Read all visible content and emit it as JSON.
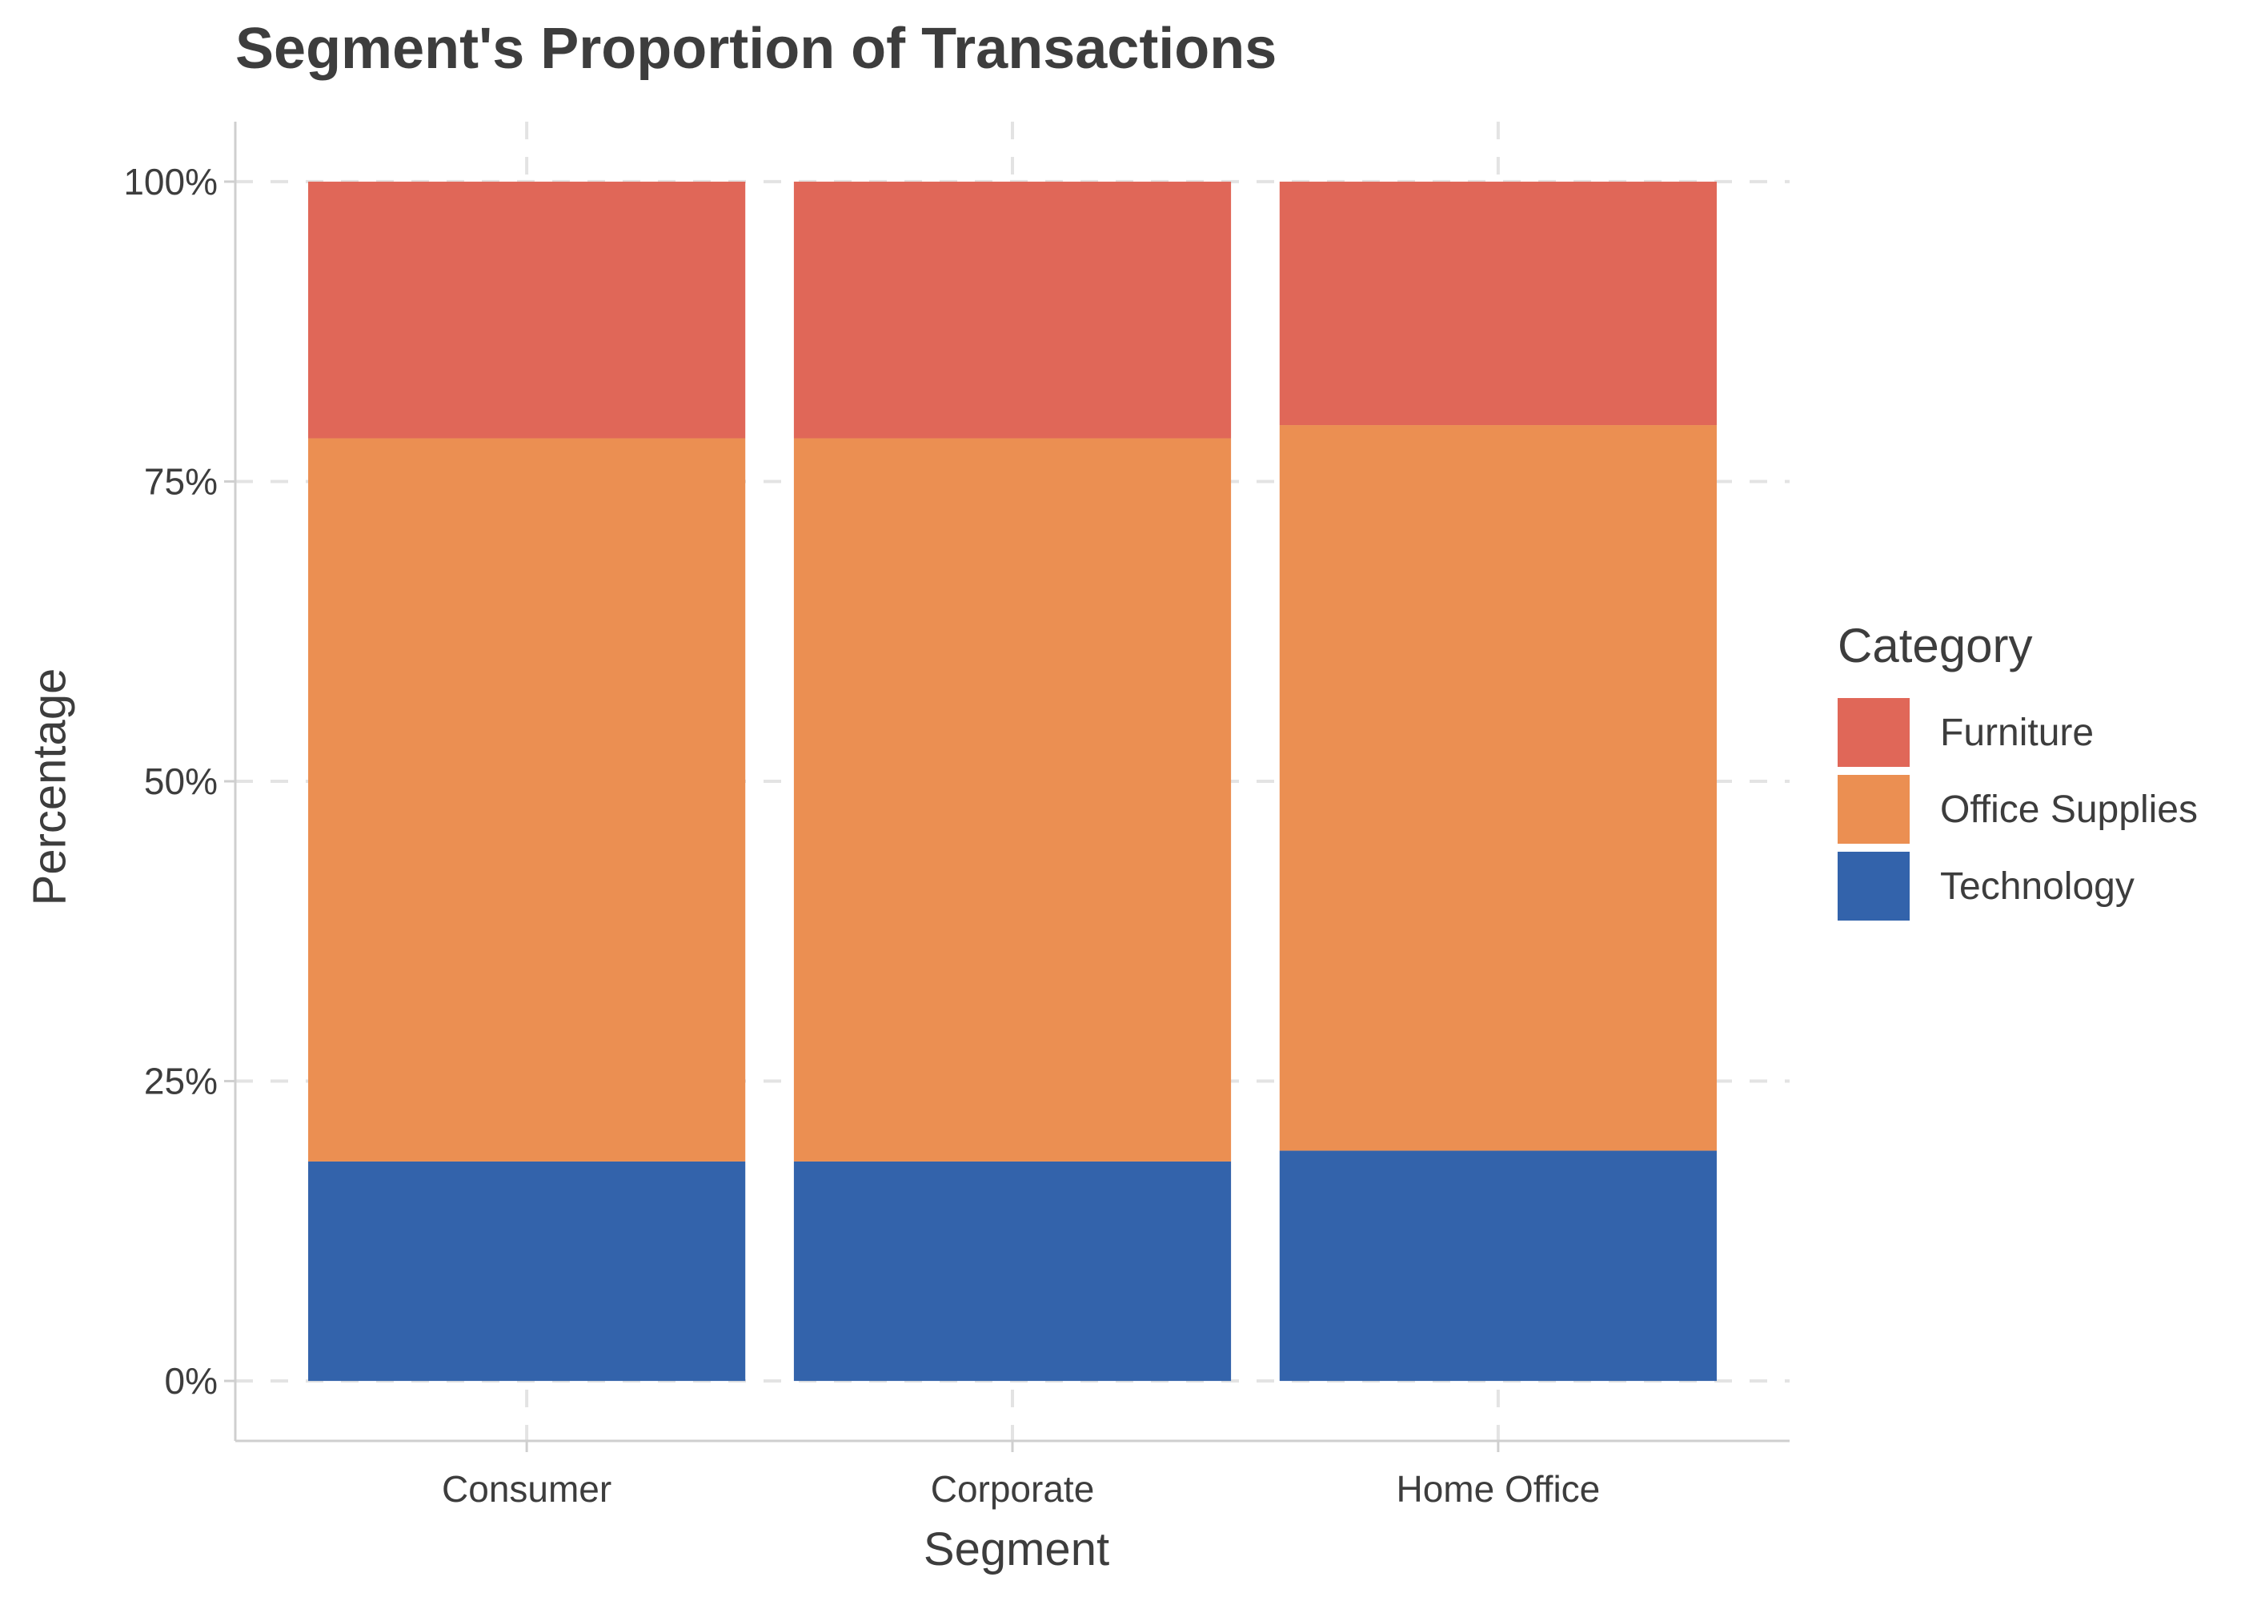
{
  "chart_data": {
    "type": "bar",
    "stacked": true,
    "normalized": true,
    "title": "Segment's Proportion of Transactions",
    "xlabel": "Segment",
    "ylabel": "Percentage",
    "categories": [
      "Consumer",
      "Corporate",
      "Home Office"
    ],
    "series": [
      {
        "name": "Technology",
        "color": "#3363ab",
        "values": [
          18.3,
          18.3,
          19.2
        ]
      },
      {
        "name": "Office Supplies",
        "color": "#eb8f52",
        "values": [
          60.3,
          60.3,
          60.5
        ]
      },
      {
        "name": "Furniture",
        "color": "#e06758",
        "values": [
          21.4,
          21.4,
          20.3
        ]
      }
    ],
    "ylim": [
      -5,
      105
    ],
    "yticks": [
      0,
      25,
      50,
      75,
      100
    ],
    "ytick_labels": [
      "0%",
      "25%",
      "50%",
      "75%",
      "100%"
    ],
    "grid": true,
    "legend": {
      "title": "Category",
      "position": "right",
      "items": [
        {
          "label": "Furniture",
          "color": "#e06758"
        },
        {
          "label": "Office Supplies",
          "color": "#eb8f52"
        },
        {
          "label": "Technology",
          "color": "#3363ab"
        }
      ]
    }
  }
}
